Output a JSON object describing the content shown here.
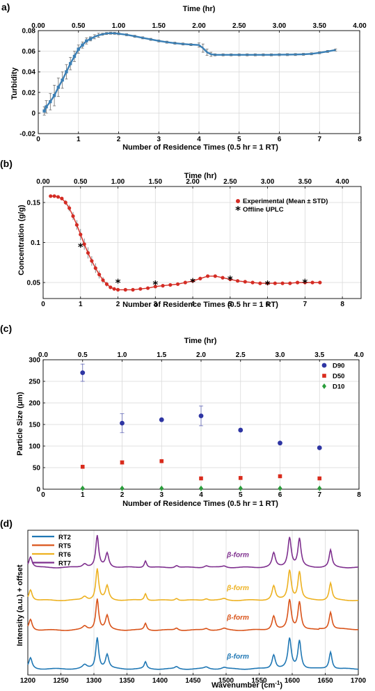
{
  "chart_data": [
    {
      "panel": "a)",
      "type": "line",
      "xlabel": "Number of Residence Times (0.5 hr = 1 RT)",
      "ylabel": "Turbidity",
      "top_xlabel": "Time (hr)",
      "xlim": [
        0,
        8
      ],
      "ylim": [
        -0.02,
        0.08
      ],
      "xticks": [
        "0",
        "1",
        "2",
        "3",
        "4",
        "5",
        "6",
        "7",
        "8"
      ],
      "yticks": [
        "-0.02",
        "0",
        "0.02",
        "0.04",
        "0.06",
        "0.08"
      ],
      "top_xticks": [
        "0.00",
        "0.50",
        "1.00",
        "1.50",
        "2.00",
        "2.50",
        "3.00",
        "3.50",
        "4.00"
      ],
      "grid": true,
      "color": "#3a7fb5",
      "series": [
        {
          "x": [
            0.15,
            0.2,
            0.3,
            0.4,
            0.5,
            0.6,
            0.7,
            0.8,
            0.9,
            1.0,
            1.1,
            1.2,
            1.3,
            1.4,
            1.5,
            1.6,
            1.7,
            1.8,
            1.9,
            2.0,
            2.2,
            2.4,
            2.6,
            2.8,
            3.0,
            3.2,
            3.4,
            3.6,
            3.8,
            4.0,
            4.1,
            4.2,
            4.3,
            4.4,
            4.6,
            4.8,
            5.0,
            5.2,
            5.4,
            5.6,
            5.8,
            6.0,
            6.2,
            6.4,
            6.6,
            6.8,
            7.0,
            7.2,
            7.4
          ],
          "y": [
            0.002,
            0.006,
            0.011,
            0.017,
            0.025,
            0.032,
            0.04,
            0.048,
            0.055,
            0.062,
            0.066,
            0.07,
            0.072,
            0.074,
            0.0755,
            0.0765,
            0.0772,
            0.0775,
            0.0774,
            0.077,
            0.076,
            0.0745,
            0.073,
            0.0715,
            0.07,
            0.0688,
            0.0678,
            0.067,
            0.0664,
            0.066,
            0.063,
            0.059,
            0.057,
            0.0565,
            0.0565,
            0.0565,
            0.0565,
            0.0565,
            0.0565,
            0.0565,
            0.0565,
            0.0566,
            0.0567,
            0.0568,
            0.057,
            0.0575,
            0.0585,
            0.0598,
            0.0612
          ],
          "err": [
            0.004,
            0.006,
            0.008,
            0.01,
            0.009,
            0.008,
            0.007,
            0.006,
            0.005,
            0.004,
            0.003,
            0.003,
            0.002,
            0.002,
            0.002,
            0.001,
            0.001,
            0.001,
            0.001,
            0.001,
            0.001,
            0.001,
            0.001,
            0.001,
            0.001,
            0.001,
            0.001,
            0.001,
            0.001,
            0.002,
            0.004,
            0.003,
            0.002,
            0.001,
            0.001,
            0.001,
            0.001,
            0.001,
            0.001,
            0.001,
            0.001,
            0.001,
            0.001,
            0.001,
            0.001,
            0.001,
            0.001,
            0.001,
            0.001
          ]
        }
      ]
    },
    {
      "panel": "(b)",
      "type": "line",
      "xlabel": "Number of Residence Times (0.5 hr = 1 RT)",
      "ylabel": "Concentration (g/g)",
      "top_xlabel": "Time (hr)",
      "xlim": [
        0,
        8.5
      ],
      "ylim": [
        0.03,
        0.17
      ],
      "xticks": [
        "0",
        "1",
        "2",
        "3",
        "4",
        "5",
        "6",
        "7",
        "8"
      ],
      "yticks": [
        "0.05",
        "0.1",
        "0.15"
      ],
      "top_xticks": [
        "0.00",
        "0.50",
        "1.00",
        "1.50",
        "2.00",
        "2.50",
        "3.00",
        "3.50",
        "4.00"
      ],
      "grid": true,
      "legend": [
        "Experimental (Mean ± STD)",
        "Offline UPLC"
      ],
      "legend_position": "top-right",
      "experimental": {
        "color": "#d42c24",
        "x": [
          0.2,
          0.3,
          0.4,
          0.5,
          0.6,
          0.7,
          0.8,
          0.9,
          1.0,
          1.1,
          1.2,
          1.3,
          1.4,
          1.5,
          1.6,
          1.7,
          1.8,
          1.9,
          2.0,
          2.2,
          2.4,
          2.6,
          2.8,
          3.0,
          3.2,
          3.4,
          3.6,
          3.8,
          4.0,
          4.2,
          4.4,
          4.6,
          4.8,
          5.0,
          5.2,
          5.4,
          5.6,
          5.8,
          6.0,
          6.2,
          6.4,
          6.6,
          6.8,
          7.0,
          7.2,
          7.4
        ],
        "y": [
          0.158,
          0.158,
          0.157,
          0.155,
          0.15,
          0.143,
          0.133,
          0.122,
          0.11,
          0.098,
          0.087,
          0.077,
          0.068,
          0.06,
          0.053,
          0.048,
          0.044,
          0.042,
          0.041,
          0.041,
          0.041,
          0.042,
          0.043,
          0.045,
          0.046,
          0.047,
          0.048,
          0.05,
          0.052,
          0.055,
          0.058,
          0.058,
          0.056,
          0.054,
          0.052,
          0.051,
          0.05,
          0.049,
          0.049,
          0.049,
          0.049,
          0.049,
          0.05,
          0.05,
          0.05,
          0.05
        ],
        "err": [
          0.001,
          0.001,
          0.001,
          0.002,
          0.003,
          0.004,
          0.005,
          0.006,
          0.007,
          0.007,
          0.007,
          0.006,
          0.006,
          0.005,
          0.004,
          0.003,
          0.002,
          0.001,
          0.001,
          0.001,
          0.001,
          0.001,
          0.001,
          0.001,
          0.001,
          0.001,
          0.001,
          0.001,
          0.001,
          0.001,
          0.001,
          0.001,
          0.001,
          0.001,
          0.001,
          0.001,
          0.001,
          0.001,
          0.001,
          0.001,
          0.001,
          0.001,
          0.001,
          0.001,
          0.001,
          0.001
        ]
      },
      "uplc": {
        "color": "#000000",
        "x": [
          1,
          2,
          3,
          4,
          5,
          6,
          7
        ],
        "y": [
          0.095,
          0.05,
          0.048,
          0.051,
          0.054,
          0.048,
          0.05
        ]
      }
    },
    {
      "panel": "(c)",
      "type": "scatter",
      "xlabel": "Number of Residence Times (0.5 hr = 1 RT)",
      "ylabel": "Particle Size (μm)",
      "top_xlabel": "Time (hr)",
      "xlim": [
        0,
        8
      ],
      "ylim": [
        0,
        300
      ],
      "xticks": [
        "0",
        "1",
        "2",
        "3",
        "4",
        "5",
        "6",
        "7",
        "8"
      ],
      "yticks": [
        "0",
        "50",
        "100",
        "150",
        "200",
        "250",
        "300"
      ],
      "top_xticks": [
        "0.0",
        "0.5",
        "1.0",
        "1.5",
        "2.0",
        "2.5",
        "3.0",
        "3.5",
        "4.0"
      ],
      "grid": true,
      "legend_position": "top-right",
      "series": [
        {
          "name": "D90",
          "color": "#2e35a3",
          "marker": "circle",
          "x": [
            1,
            2,
            3,
            4,
            5,
            6,
            7
          ],
          "y": [
            270,
            153,
            161,
            170,
            137,
            107,
            96
          ],
          "err": [
            20,
            22,
            0,
            23,
            0,
            0,
            0
          ]
        },
        {
          "name": "D50",
          "color": "#d92b1c",
          "marker": "square",
          "x": [
            1,
            2,
            3,
            4,
            5,
            6,
            7
          ],
          "y": [
            52,
            62,
            65,
            25,
            26,
            30,
            25
          ],
          "err": [
            0,
            4,
            0,
            0,
            0,
            0,
            0
          ]
        },
        {
          "name": "D10",
          "color": "#2a9d3b",
          "marker": "diamond",
          "x": [
            1,
            2,
            3,
            4,
            5,
            6,
            7
          ],
          "y": [
            2,
            2,
            2,
            2,
            2,
            2,
            2
          ],
          "err": [
            0,
            0,
            0,
            0,
            0,
            0,
            0
          ]
        }
      ]
    },
    {
      "panel": "(d)",
      "type": "line",
      "xlabel": "Wavenumber (cm",
      "xlabel_sup": "-1",
      "xlabel_end": ")",
      "ylabel": "Intensity (a.u.) + offset",
      "xlim": [
        1200,
        1700
      ],
      "xticks": [
        "1200",
        "1250",
        "1300",
        "1350",
        "1400",
        "1450",
        "1500",
        "1550",
        "1600",
        "1650",
        "1700"
      ],
      "grid": true,
      "legend_position": "top-left",
      "form_label": "β-form",
      "peaks": [
        [
          1204,
          0.35,
          3
        ],
        [
          1286,
          0.12,
          4
        ],
        [
          1305,
          1.0,
          2.6
        ],
        [
          1320,
          0.45,
          3
        ],
        [
          1378,
          0.22,
          2.2
        ],
        [
          1425,
          0.07,
          3
        ],
        [
          1470,
          0.06,
          4
        ],
        [
          1497,
          0.05,
          4
        ],
        [
          1572,
          0.45,
          3
        ],
        [
          1596,
          0.95,
          3
        ],
        [
          1611,
          0.9,
          2.8
        ],
        [
          1658,
          0.55,
          2.6
        ]
      ],
      "series": [
        {
          "name": "RT2",
          "color": "#1f77b4",
          "offset": 0.0,
          "scale": 1.0
        },
        {
          "name": "RT5",
          "color": "#d95319",
          "offset": 1.3,
          "scale": 1.0
        },
        {
          "name": "RT6",
          "color": "#edb120",
          "offset": 2.3,
          "scale": 1.0
        },
        {
          "name": "RT7",
          "color": "#7e2f8e",
          "offset": 3.4,
          "scale": 1.0
        }
      ]
    }
  ]
}
